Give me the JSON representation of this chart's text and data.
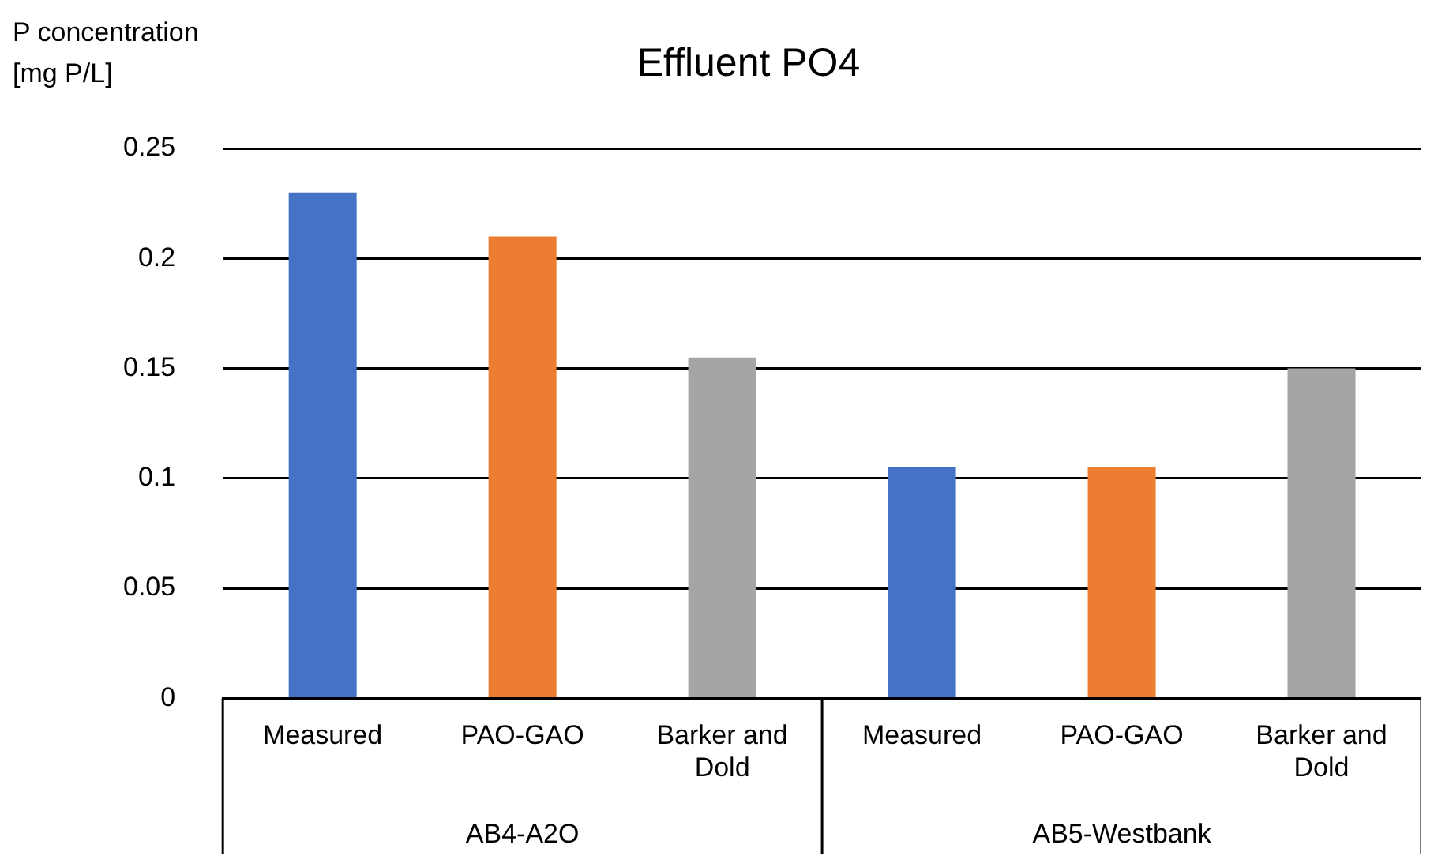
{
  "chart_data": {
    "type": "bar",
    "title": "Effluent PO4",
    "ylabel": "P concentration [mg P/L]",
    "categories": [
      "Measured",
      "PAO-GAO",
      "Barker and Dold",
      "Measured",
      "PAO-GAO",
      "Barker and Dold"
    ],
    "values": [
      0.23,
      0.21,
      0.155,
      0.105,
      0.105,
      0.15
    ],
    "colors": [
      "#4472c4",
      "#ed7d31",
      "#a5a5a5",
      "#4472c4",
      "#ed7d31",
      "#a5a5a5"
    ],
    "ylim": [
      0,
      0.25
    ],
    "yticks": [
      0,
      0.05,
      0.1,
      0.15,
      0.2,
      0.25
    ],
    "grid": "y",
    "legend": false,
    "annotations": [
      "AB4-A2O",
      "AB5-Westbank"
    ]
  }
}
